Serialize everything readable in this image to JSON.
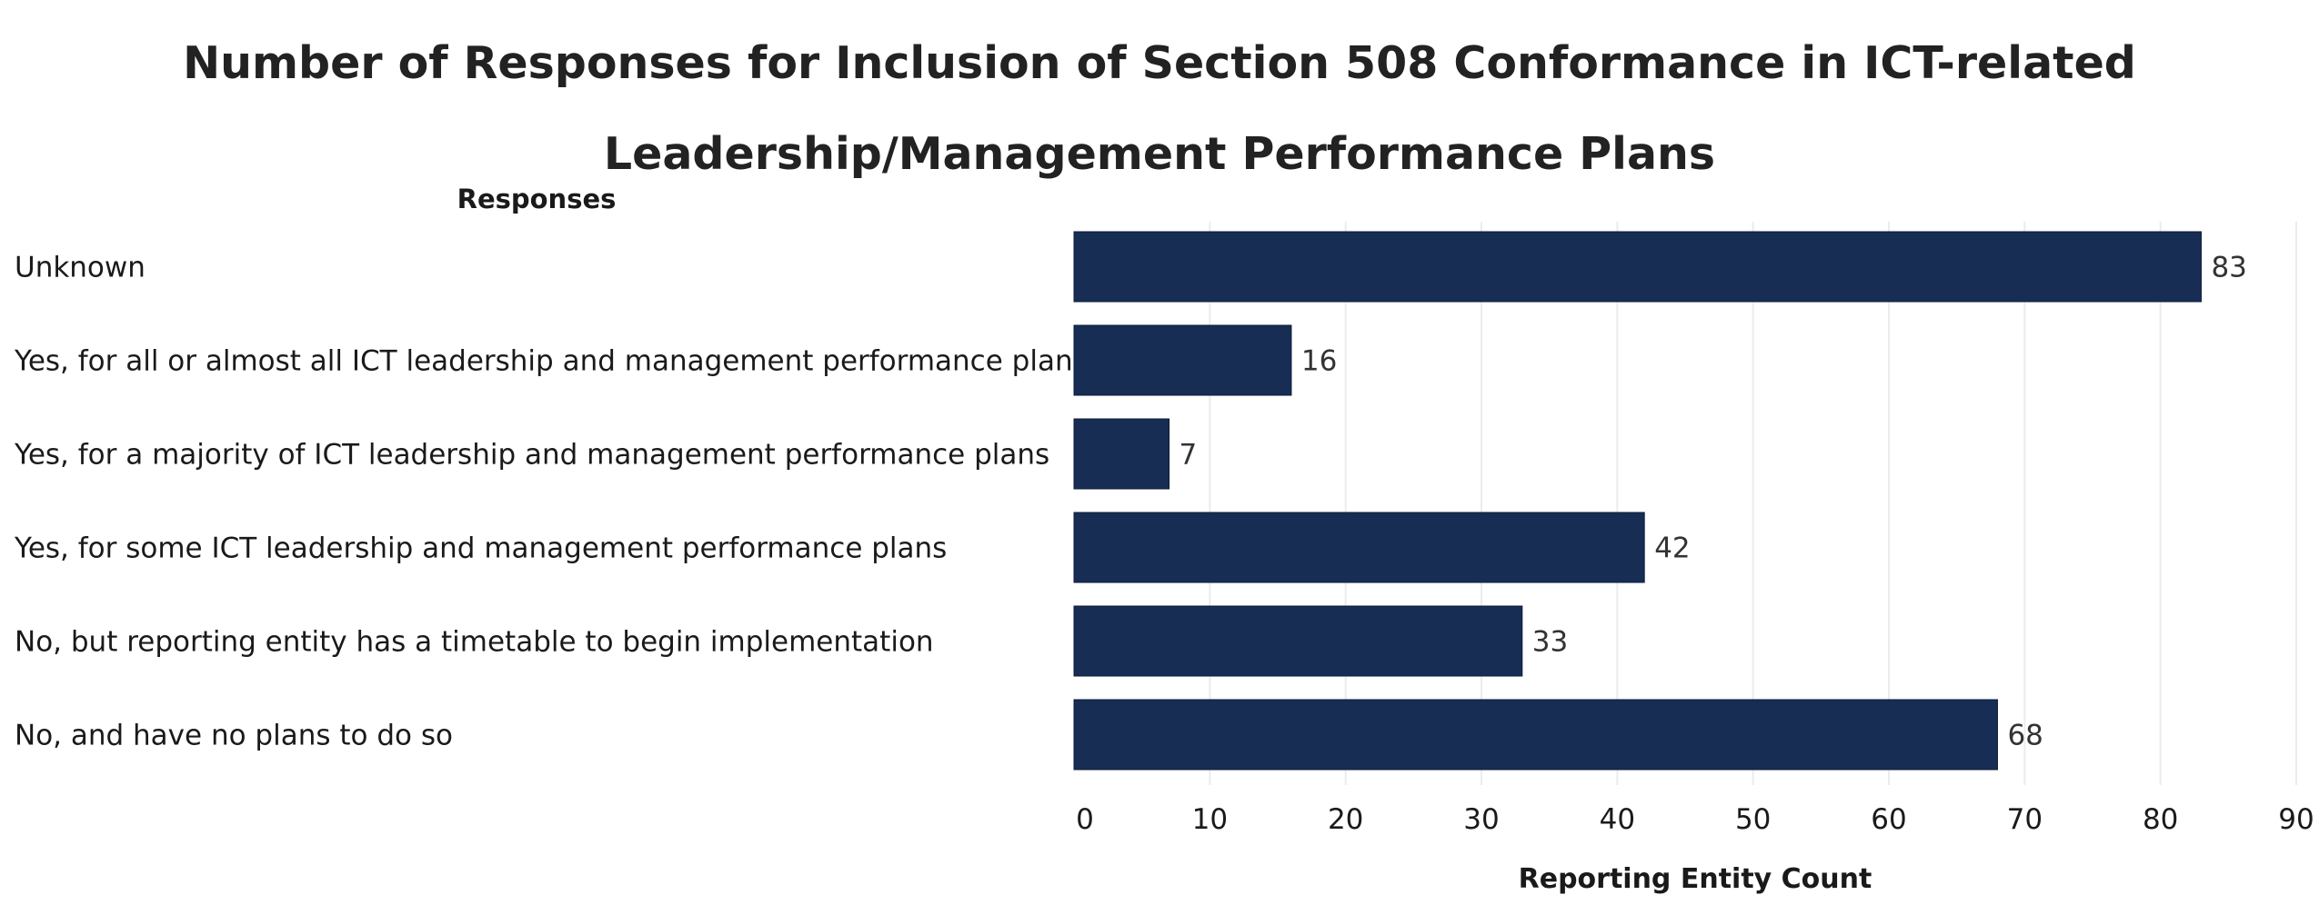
{
  "chart_data": {
    "type": "bar",
    "orientation": "horizontal",
    "title": [
      "Number of Responses for Inclusion of Section 508 Conformance in ICT-related",
      "Leadership/Management Performance Plans"
    ],
    "row_header": "Responses",
    "xlabel": "Reporting Entity Count",
    "categories": [
      "Unknown",
      "Yes, for all or almost all ICT leadership and management performance plans",
      "Yes, for a majority of ICT leadership and management performance plans",
      "Yes, for some ICT leadership and management performance plans",
      "No, but reporting entity has a timetable to begin implementation",
      "No, and have no plans to do so"
    ],
    "values": [
      83,
      16,
      7,
      42,
      33,
      68
    ],
    "value_labels": [
      "83",
      "16",
      "7",
      "42",
      "33",
      "68"
    ],
    "xlim": [
      0,
      90
    ],
    "xticks": [
      0,
      10,
      20,
      30,
      40,
      50,
      60,
      70,
      80,
      90
    ],
    "xtick_labels": [
      "0",
      "10",
      "20",
      "30",
      "40",
      "50",
      "60",
      "70",
      "80",
      "90"
    ],
    "grid": "vertical",
    "legend": "none",
    "colors": {
      "bar": "#172d53",
      "bar_edge": "#0d1c38",
      "grid": "#ececec",
      "text": "#1a1a1a"
    }
  }
}
